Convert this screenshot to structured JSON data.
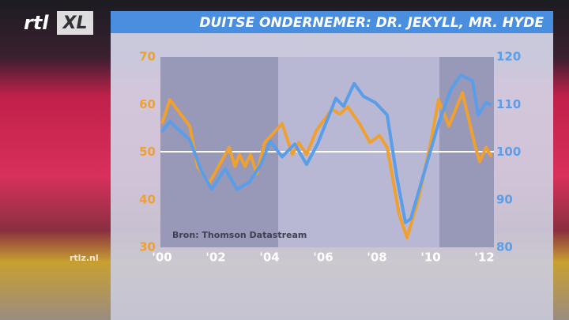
{
  "logo": {
    "brand": "rtl",
    "product": "XL",
    "site": "rtlz.nl"
  },
  "chart_data": {
    "type": "line",
    "title": "DUITSE ONDERNEMER: DR. JEKYLL, MR. HYDE",
    "source": "Bron: Thomson Datastream",
    "xlim": [
      2000,
      2012.5
    ],
    "xticks": [
      {
        "value": 2000,
        "label": "'00"
      },
      {
        "value": 2002,
        "label": "'02"
      },
      {
        "value": 2004,
        "label": "'04"
      },
      {
        "value": 2006,
        "label": "'06"
      },
      {
        "value": 2008,
        "label": "'08"
      },
      {
        "value": 2010,
        "label": "'10"
      },
      {
        "value": 2012,
        "label": "'12"
      }
    ],
    "ylim": [
      30,
      70
    ],
    "yticks": [
      30,
      40,
      50,
      60,
      70
    ],
    "y_color": "#f0a030",
    "y2lim": [
      80,
      120
    ],
    "y2ticks": [
      80,
      90,
      100,
      110,
      120
    ],
    "y2_color": "#5a9de8",
    "series": [
      {
        "color": "#f0a030",
        "axis": "y",
        "x": [
          2000,
          2000.29,
          2001.03,
          2001.32,
          2001.76,
          2002.5,
          2002.71,
          2002.88,
          2003.09,
          2003.29,
          2003.53,
          2003.82,
          2004.47,
          2004.85,
          2005.09,
          2005.38,
          2005.74,
          2006.32,
          2006.62,
          2006.91,
          2007.35,
          2007.74,
          2008.09,
          2008.38,
          2008.82,
          2009.12,
          2009.56,
          2010.0,
          2010.29,
          2010.68,
          2011.18,
          2011.62,
          2011.82,
          2012.06,
          2012.26
        ],
        "values": [
          56,
          61,
          55.5,
          47,
          43.5,
          51,
          47,
          49.5,
          47,
          49.5,
          45.5,
          52,
          56,
          49.5,
          52,
          49.5,
          54.5,
          59,
          58,
          59.5,
          56,
          52,
          53.5,
          51,
          37,
          32,
          40.5,
          52,
          61,
          55.5,
          62.5,
          52,
          48,
          51,
          49
        ]
      },
      {
        "color": "#5a9de8",
        "axis": "y2",
        "x": [
          2000,
          2000.29,
          2001.03,
          2001.47,
          2001.85,
          2002.35,
          2002.79,
          2003.24,
          2003.68,
          2004.03,
          2004.47,
          2004.94,
          2005.38,
          2005.79,
          2006.47,
          2006.76,
          2007.15,
          2007.5,
          2007.94,
          2008.38,
          2008.74,
          2009.06,
          2009.26,
          2009.71,
          2010.29,
          2010.74,
          2011.12,
          2011.56,
          2011.76,
          2012.06,
          2012.26
        ],
        "values": [
          104.3,
          106.4,
          102.6,
          96,
          92.2,
          96.5,
          92.2,
          93.6,
          97.4,
          102.3,
          99,
          101.7,
          97.4,
          101.7,
          111.3,
          109.6,
          114.4,
          111.7,
          110.4,
          107.8,
          94.8,
          85.2,
          86,
          94.8,
          106,
          113,
          116.2,
          115,
          107.8,
          110.4,
          109.9
        ]
      }
    ]
  }
}
